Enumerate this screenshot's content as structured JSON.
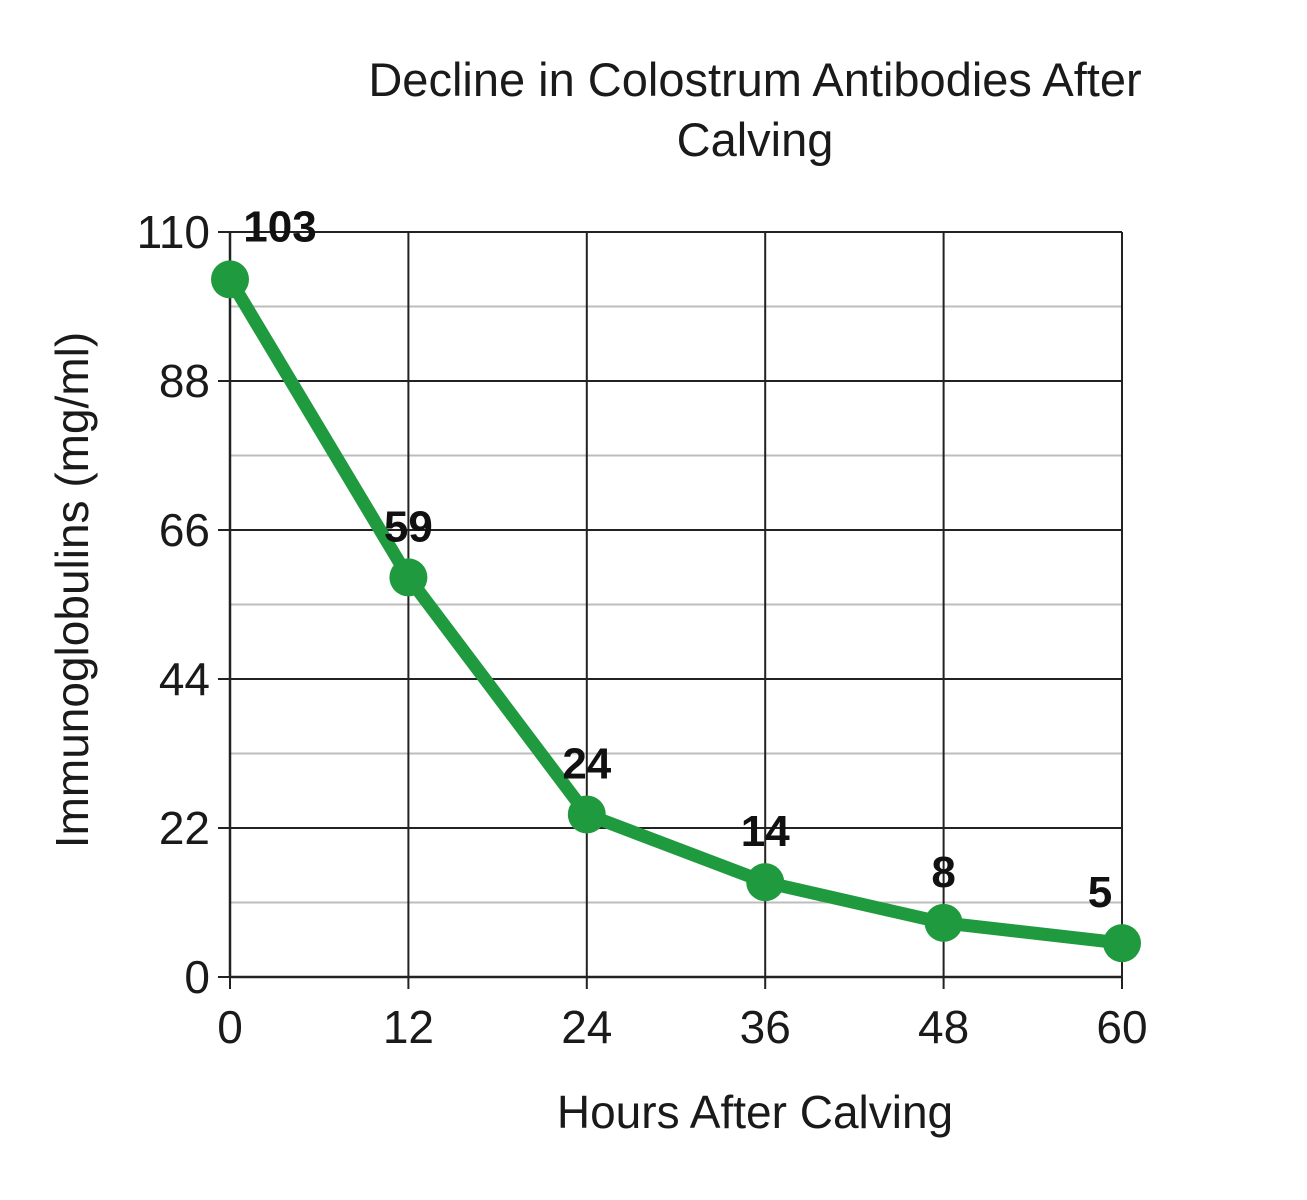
{
  "chart_data": {
    "type": "line",
    "title_lines": [
      "Decline in Colostrum Antibodies After",
      "Calving"
    ],
    "xlabel": "Hours After Calving",
    "ylabel": "Immunoglobulins (mg/ml)",
    "x": [
      0,
      12,
      24,
      36,
      48,
      60
    ],
    "y": [
      103,
      59,
      24,
      14,
      8,
      5
    ],
    "data_labels": [
      "103",
      "59",
      "24",
      "14",
      "8",
      "5"
    ],
    "x_ticks": [
      0,
      12,
      24,
      36,
      48,
      60
    ],
    "y_ticks": [
      0,
      22,
      44,
      66,
      88,
      110
    ],
    "xlim": [
      0,
      60
    ],
    "ylim": [
      0,
      110
    ],
    "grid": true,
    "minor_y_grid_step": 11,
    "series_color": "#1f9a3e",
    "grid_color": "#222222",
    "minor_grid_color": "#bdbdbd"
  }
}
